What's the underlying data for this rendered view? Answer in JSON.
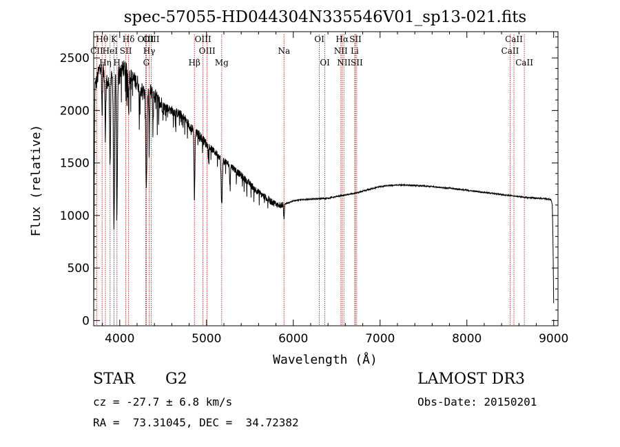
{
  "chart_data": {
    "type": "line",
    "title": "spec-57055-HD044304N335546V01_sp13-021.fits",
    "xlabel": "Wavelength (Å)",
    "ylabel": "Flux (relative)",
    "xlim": [
      3700,
      9050
    ],
    "ylim": [
      -50,
      2750
    ],
    "xticks": [
      4000,
      5000,
      6000,
      7000,
      8000,
      9000
    ],
    "yticks": [
      0,
      500,
      1000,
      1500,
      2000,
      2500
    ],
    "line_color": "#000000",
    "marker_color": "#b22222",
    "lines": [
      {
        "label": "CII",
        "x": 3735,
        "row": 1
      },
      {
        "label": "Hθ",
        "x": 3797,
        "row": 0
      },
      {
        "label": "Hη",
        "x": 3835,
        "row": 2
      },
      {
        "label": "HeI",
        "x": 3889,
        "row": 1
      },
      {
        "label": "K",
        "x": 3934,
        "row": 0
      },
      {
        "label": "H",
        "x": 3968,
        "row": 2
      },
      {
        "label": "SII",
        "x": 4070,
        "row": 1
      },
      {
        "label": "Hδ",
        "x": 4102,
        "row": 0
      },
      {
        "label": "OIII",
        "x": 4300,
        "row": 0
      },
      {
        "label": "G",
        "x": 4307,
        "row": 2
      },
      {
        "label": "Hγ",
        "x": 4340,
        "row": 1
      },
      {
        "label": "OIII",
        "x": 4363,
        "row": 0
      },
      {
        "label": "Hβ",
        "x": 4861,
        "row": 2
      },
      {
        "label": "OIII",
        "x": 4959,
        "row": 0
      },
      {
        "label": "OIII",
        "x": 5007,
        "row": 1
      },
      {
        "label": "Mg",
        "x": 5175,
        "row": 2
      },
      {
        "label": "Na",
        "x": 5893,
        "row": 1
      },
      {
        "label": "OI",
        "x": 6300,
        "row": 0
      },
      {
        "label": "OI",
        "x": 6364,
        "row": 2
      },
      {
        "label": "NII",
        "x": 6548,
        "row": 1
      },
      {
        "label": "Hα",
        "x": 6563,
        "row": 0
      },
      {
        "label": "NII",
        "x": 6583,
        "row": 2
      },
      {
        "label": "SII",
        "x": 6716,
        "row": 0
      },
      {
        "label": "Li",
        "x": 6708,
        "row": 1
      },
      {
        "label": "SII",
        "x": 6731,
        "row": 2
      },
      {
        "label": "CaII",
        "x": 8498,
        "row": 1
      },
      {
        "label": "CaII",
        "x": 8542,
        "row": 0
      },
      {
        "label": "CaII",
        "x": 8662,
        "row": 2
      }
    ],
    "continuum": [
      [
        3700,
        0
      ],
      [
        3712,
        2200
      ],
      [
        3740,
        2300
      ],
      [
        3780,
        2450
      ],
      [
        3820,
        2350
      ],
      [
        3860,
        2250
      ],
      [
        3900,
        2300
      ],
      [
        3950,
        2350
      ],
      [
        4000,
        2380
      ],
      [
        4050,
        2400
      ],
      [
        4100,
        2350
      ],
      [
        4150,
        2300
      ],
      [
        4200,
        2270
      ],
      [
        4250,
        2200
      ],
      [
        4300,
        2150
      ],
      [
        4350,
        2180
      ],
      [
        4400,
        2140
      ],
      [
        4450,
        2080
      ],
      [
        4500,
        2050
      ],
      [
        4550,
        2020
      ],
      [
        4600,
        2000
      ],
      [
        4650,
        1980
      ],
      [
        4700,
        1960
      ],
      [
        4750,
        1920
      ],
      [
        4800,
        1860
      ],
      [
        4850,
        1810
      ],
      [
        4900,
        1780
      ],
      [
        4950,
        1730
      ],
      [
        5000,
        1680
      ],
      [
        5050,
        1640
      ],
      [
        5100,
        1600
      ],
      [
        5150,
        1560
      ],
      [
        5200,
        1520
      ],
      [
        5250,
        1490
      ],
      [
        5300,
        1460
      ],
      [
        5350,
        1420
      ],
      [
        5400,
        1380
      ],
      [
        5450,
        1340
      ],
      [
        5500,
        1300
      ],
      [
        5550,
        1260
      ],
      [
        5600,
        1220
      ],
      [
        5650,
        1190
      ],
      [
        5700,
        1160
      ],
      [
        5750,
        1130
      ],
      [
        5800,
        1110
      ],
      [
        5850,
        1100
      ],
      [
        5900,
        1110
      ],
      [
        5950,
        1120
      ],
      [
        6000,
        1140
      ],
      [
        6100,
        1150
      ],
      [
        6200,
        1155
      ],
      [
        6300,
        1160
      ],
      [
        6400,
        1165
      ],
      [
        6500,
        1180
      ],
      [
        6600,
        1195
      ],
      [
        6700,
        1210
      ],
      [
        6800,
        1230
      ],
      [
        6900,
        1255
      ],
      [
        7000,
        1275
      ],
      [
        7100,
        1285
      ],
      [
        7200,
        1290
      ],
      [
        7300,
        1290
      ],
      [
        7400,
        1285
      ],
      [
        7500,
        1280
      ],
      [
        7600,
        1275
      ],
      [
        7700,
        1268
      ],
      [
        7800,
        1260
      ],
      [
        7900,
        1250
      ],
      [
        8000,
        1240
      ],
      [
        8100,
        1230
      ],
      [
        8200,
        1220
      ],
      [
        8300,
        1210
      ],
      [
        8400,
        1200
      ],
      [
        8500,
        1190
      ],
      [
        8600,
        1180
      ],
      [
        8700,
        1170
      ],
      [
        8800,
        1165
      ],
      [
        8900,
        1160
      ],
      [
        8970,
        1150
      ],
      [
        8985,
        1100
      ],
      [
        8995,
        600
      ],
      [
        9000,
        150
      ]
    ],
    "absorption_dips": [
      {
        "x": 3797,
        "depth": 450,
        "width": 6
      },
      {
        "x": 3835,
        "depth": 550,
        "width": 6
      },
      {
        "x": 3889,
        "depth": 800,
        "width": 7
      },
      {
        "x": 3934,
        "depth": 1450,
        "width": 9
      },
      {
        "x": 3968,
        "depth": 1300,
        "width": 9
      },
      {
        "x": 4102,
        "depth": 300,
        "width": 6
      },
      {
        "x": 4226,
        "depth": 250,
        "width": 5
      },
      {
        "x": 4307,
        "depth": 850,
        "width": 10
      },
      {
        "x": 4340,
        "depth": 450,
        "width": 6
      },
      {
        "x": 4383,
        "depth": 250,
        "width": 5
      },
      {
        "x": 4861,
        "depth": 650,
        "width": 7
      },
      {
        "x": 5175,
        "depth": 450,
        "width": 9
      },
      {
        "x": 5270,
        "depth": 200,
        "width": 6
      },
      {
        "x": 5893,
        "depth": 140,
        "width": 6
      }
    ]
  },
  "footer": {
    "object_type": "STAR",
    "subclass": "G2",
    "survey": "LAMOST DR3",
    "redshift": "cz = -27.7 ± 6.8 km/s",
    "obs_date": "Obs-Date: 20150201",
    "coords": "RA =  73.31045, DEC =  34.72382"
  }
}
